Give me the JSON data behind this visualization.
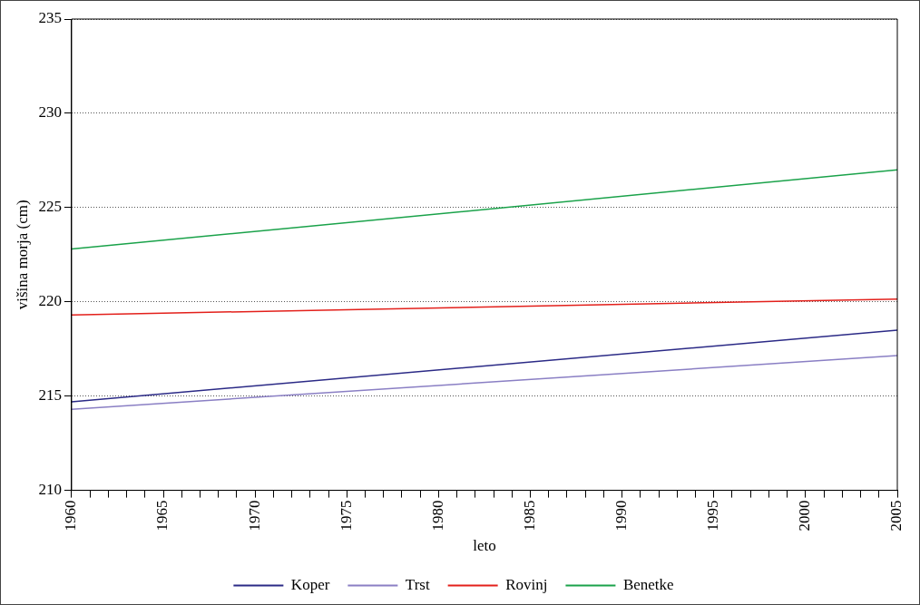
{
  "chart_data": {
    "type": "line",
    "xlabel": "leto",
    "ylabel": "višina morja (cm)",
    "x": [
      1960,
      2005
    ],
    "series": [
      {
        "name": "Koper",
        "color": "#2b2a86",
        "values": [
          214.7,
          218.5
        ]
      },
      {
        "name": "Trst",
        "color": "#8a7fc4",
        "values": [
          214.3,
          217.15
        ]
      },
      {
        "name": "Rovinj",
        "color": "#e3201b",
        "values": [
          219.3,
          220.15
        ]
      },
      {
        "name": "Benetke",
        "color": "#1aa24a",
        "values": [
          222.8,
          227.0
        ]
      }
    ],
    "xlim": [
      1960,
      2005
    ],
    "xticks": [
      1960,
      {
        "value": 1961,
        "label": null
      },
      {
        "value": 1962,
        "label": null
      },
      {
        "value": 1963,
        "label": null
      },
      {
        "value": 1964,
        "label": null
      },
      1965,
      {
        "value": 1966,
        "label": null
      },
      {
        "value": 1967,
        "label": null
      },
      {
        "value": 1968,
        "label": null
      },
      {
        "value": 1969,
        "label": null
      },
      1970,
      {
        "value": 1971,
        "label": null
      },
      {
        "value": 1972,
        "label": null
      },
      {
        "value": 1973,
        "label": null
      },
      {
        "value": 1974,
        "label": null
      },
      1975,
      {
        "value": 1976,
        "label": null
      },
      {
        "value": 1977,
        "label": null
      },
      {
        "value": 1978,
        "label": null
      },
      {
        "value": 1979,
        "label": null
      },
      1980,
      {
        "value": 1981,
        "label": null
      },
      {
        "value": 1982,
        "label": null
      },
      {
        "value": 1983,
        "label": null
      },
      {
        "value": 1984,
        "label": null
      },
      1985,
      {
        "value": 1986,
        "label": null
      },
      {
        "value": 1987,
        "label": null
      },
      {
        "value": 1988,
        "label": null
      },
      {
        "value": 1989,
        "label": null
      },
      1990,
      {
        "value": 1991,
        "label": null
      },
      {
        "value": 1992,
        "label": null
      },
      {
        "value": 1993,
        "label": null
      },
      {
        "value": 1994,
        "label": null
      },
      1995,
      {
        "value": 1996,
        "label": null
      },
      {
        "value": 1997,
        "label": null
      },
      {
        "value": 1998,
        "label": null
      },
      {
        "value": 1999,
        "label": null
      },
      2000,
      {
        "value": 2001,
        "label": null
      },
      {
        "value": 2002,
        "label": null
      },
      {
        "value": 2003,
        "label": null
      },
      {
        "value": 2004,
        "label": null
      },
      2005
    ],
    "ylim": [
      210,
      235
    ],
    "yticks": [
      210,
      215,
      220,
      225,
      230,
      235
    ],
    "grid": "y",
    "legend": "bottom",
    "marker": "none",
    "line_style": "solid"
  }
}
